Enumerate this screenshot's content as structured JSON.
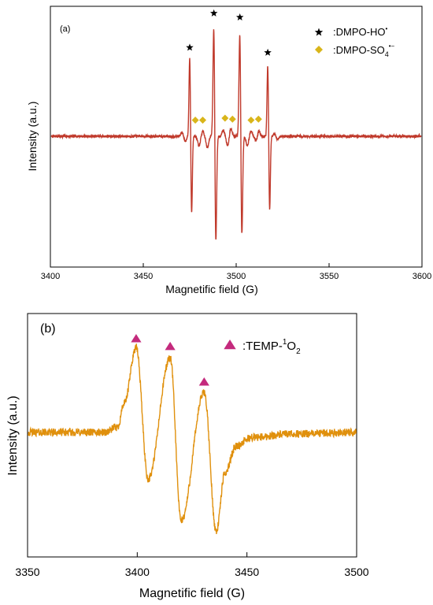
{
  "chart_data": [
    {
      "type": "line",
      "panel_label": "(a)",
      "xlabel": "Magnetific field (G)",
      "ylabel": "Intensity (a.u.)",
      "xlim": [
        3400,
        3600
      ],
      "x_ticks": [
        "3400",
        "3450",
        "3500",
        "3550",
        "3600"
      ],
      "line_color": "#c0392b",
      "baseline": 0,
      "peaks": [
        {
          "x": 3475,
          "y": 0.8,
          "width": 0.55
        },
        {
          "x": 3476,
          "y": -0.78,
          "width": 0.55
        },
        {
          "x": 3488,
          "y": 1.15,
          "width": 0.65
        },
        {
          "x": 3489,
          "y": -1.12,
          "width": 0.65
        },
        {
          "x": 3502,
          "y": 1.08,
          "width": 0.65
        },
        {
          "x": 3503,
          "y": -1.05,
          "width": 0.65
        },
        {
          "x": 3517,
          "y": 0.72,
          "width": 0.55
        },
        {
          "x": 3518,
          "y": -0.75,
          "width": 0.55
        }
      ],
      "legend": [
        {
          "marker": "star",
          "label": ":DMPO-HO",
          "sup": "•",
          "sub": "",
          "color": "#000000"
        },
        {
          "marker": "diamond",
          "label": ":DMPO-SO",
          "sub": "4",
          "sup": "•−",
          "color": "#d9b51a"
        }
      ],
      "annotations": [
        {
          "marker": "star",
          "x": 3475,
          "y": 0.88
        },
        {
          "marker": "star",
          "x": 3488,
          "y": 1.22
        },
        {
          "marker": "star",
          "x": 3502,
          "y": 1.18
        },
        {
          "marker": "star",
          "x": 3517,
          "y": 0.83
        },
        {
          "marker": "diamond",
          "x": 3478,
          "y": 0.16
        },
        {
          "marker": "diamond",
          "x": 3482,
          "y": 0.16
        },
        {
          "marker": "diamond",
          "x": 3494,
          "y": 0.18
        },
        {
          "marker": "diamond",
          "x": 3498,
          "y": 0.17
        },
        {
          "marker": "diamond",
          "x": 3508,
          "y": 0.16
        },
        {
          "marker": "diamond",
          "x": 3512,
          "y": 0.17
        }
      ],
      "ylim": [
        -1.15,
        1.15
      ],
      "legend_placement": "top-right"
    },
    {
      "type": "line",
      "panel_label": "(b)",
      "xlabel": "Magnetific field (G)",
      "ylabel": "Intensity (a.u.)",
      "xlim": [
        3350,
        3500
      ],
      "x_ticks": [
        "3350",
        "3400",
        "3450",
        "3500"
      ],
      "line_color": "#e0900c",
      "baseline": 0,
      "peaks": [
        {
          "x": 3399.5,
          "y": 1.0
        },
        {
          "x": 3405,
          "y": -0.52
        },
        {
          "x": 3415,
          "y": 0.88
        },
        {
          "x": 3420,
          "y": -1.0
        },
        {
          "x": 3430.5,
          "y": 0.48
        },
        {
          "x": 3436,
          "y": -1.12
        }
      ],
      "legend": [
        {
          "marker": "triangle",
          "label": ":TEMP-",
          "sup": "1",
          "tail": "O",
          "sub": "2",
          "color": "#c42a7d"
        }
      ],
      "annotations": [
        {
          "marker": "triangle",
          "x": 3399.5,
          "y": 1.1
        },
        {
          "marker": "triangle",
          "x": 3415,
          "y": 1.01
        },
        {
          "marker": "triangle",
          "x": 3430.5,
          "y": 0.6
        }
      ],
      "ylim": [
        -1.25,
        1.25
      ],
      "legend_placement": "top-right"
    }
  ]
}
